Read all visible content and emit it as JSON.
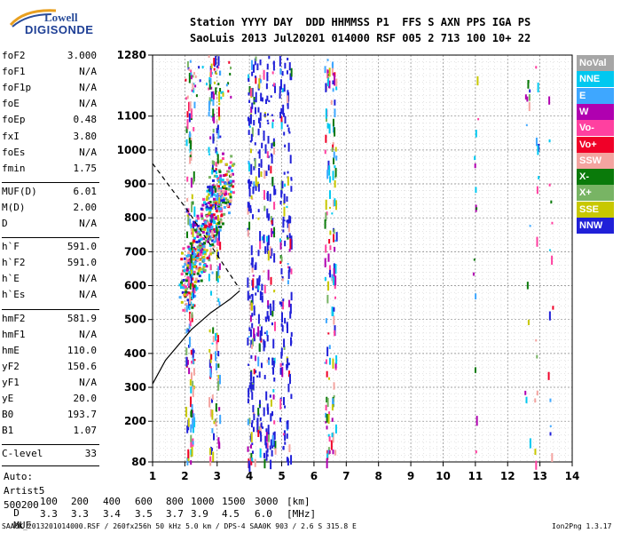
{
  "logo": {
    "line1": "Lowell",
    "line2": "DIGISONDE"
  },
  "header": {
    "labels": [
      "Station",
      "YYYY",
      "DAY",
      "DDD",
      "HHMMSS",
      "P1",
      "FFS",
      "S",
      "AXN",
      "PPS",
      "IGA",
      "PS"
    ],
    "values": [
      "SaoLuis",
      "2013",
      "Jul20",
      "201",
      "014000",
      "RSF",
      "005",
      "2",
      "713",
      "100",
      "10+",
      "22"
    ]
  },
  "params_a": [
    {
      "k": "foF2",
      "v": "3.000"
    },
    {
      "k": "foF1",
      "v": "N/A"
    },
    {
      "k": "foF1p",
      "v": "N/A"
    },
    {
      "k": "foE",
      "v": "N/A"
    },
    {
      "k": "foEp",
      "v": "0.48"
    },
    {
      "k": "fxI",
      "v": "3.80"
    },
    {
      "k": "foEs",
      "v": "N/A"
    },
    {
      "k": "fmin",
      "v": "1.75"
    }
  ],
  "params_b": [
    {
      "k": "MUF(D)",
      "v": "6.01"
    },
    {
      "k": "M(D)",
      "v": "2.00"
    },
    {
      "k": "D",
      "v": "N/A"
    }
  ],
  "params_c": [
    {
      "k": "h`F",
      "v": "591.0"
    },
    {
      "k": "h`F2",
      "v": "591.0"
    },
    {
      "k": "h`E",
      "v": "N/A"
    },
    {
      "k": "h`Es",
      "v": "N/A"
    }
  ],
  "params_d": [
    {
      "k": "hmF2",
      "v": "581.9"
    },
    {
      "k": "hmF1",
      "v": "N/A"
    },
    {
      "k": "hmE",
      "v": "110.0"
    },
    {
      "k": "yF2",
      "v": "150.6"
    },
    {
      "k": "yF1",
      "v": "N/A"
    },
    {
      "k": "yE",
      "v": "20.0"
    },
    {
      "k": "B0",
      "v": "193.7"
    },
    {
      "k": "B1",
      "v": "1.07"
    }
  ],
  "clevel": {
    "k": "C-level",
    "v": "33"
  },
  "footer_status": [
    "Auto:",
    "Artist5",
    "500200"
  ],
  "legend": [
    {
      "label": "NoVal",
      "color": "#a6a6a6"
    },
    {
      "label": "NNE",
      "color": "#00c8f0"
    },
    {
      "label": "E",
      "color": "#3ea7ff"
    },
    {
      "label": "W",
      "color": "#b000b0"
    },
    {
      "label": "Vo-",
      "color": "#ff40a0"
    },
    {
      "label": "Vo+",
      "color": "#f00028"
    },
    {
      "label": "SSW",
      "color": "#f4a4a0"
    },
    {
      "label": "X-",
      "color": "#0a7a0a"
    },
    {
      "label": "X+",
      "color": "#78b464"
    },
    {
      "label": "SSE",
      "color": "#c8c800"
    },
    {
      "label": "NNW",
      "color": "#2020d8"
    }
  ],
  "muf_table": {
    "row1_label": "D",
    "row1": [
      "100",
      "200",
      "400",
      "600",
      "800",
      "1000",
      "1500",
      "3000"
    ],
    "row1_unit": "[km]",
    "row2_label": "MUF",
    "row2": [
      "3.3",
      "3.3",
      "3.4",
      "3.5",
      "3.7",
      "3.9",
      "4.5",
      "6.0"
    ],
    "row2_unit": "[MHz]"
  },
  "footer_left": "SAA0K_2013201014000.RSF / 260fx256h 50 kHz 5.0 km / DPS-4 SAA0K 903 / 2.6 S 315.8 E",
  "footer_right": "Ion2Png 1.3.17",
  "chart_data": {
    "type": "scatter",
    "xlim": [
      1,
      14
    ],
    "ylim": [
      80,
      1280
    ],
    "x_ticks": [
      1,
      2,
      3,
      4,
      5,
      6,
      7,
      8,
      9,
      10,
      11,
      12,
      13,
      14
    ],
    "y_ticks": [
      80,
      200,
      300,
      400,
      500,
      600,
      700,
      800,
      900,
      1000,
      1100,
      1280
    ],
    "grid": "on",
    "legend_placement": "right",
    "traces": {
      "ordinary_o_trace": "cluster 2.0–3.3 MHz, 560–950 km",
      "vertical_streaks_MHz": [
        2.1,
        2.2,
        2.8,
        3.0,
        4.0,
        4.1,
        4.3,
        4.5,
        4.7,
        5.0,
        5.2,
        6.4,
        6.6,
        11.0,
        12.6,
        12.9,
        13.3
      ]
    },
    "profile_dashed": [
      [
        1,
        960
      ],
      [
        2.1,
        820
      ],
      [
        3.7,
        590
      ]
    ],
    "profile_solid": [
      [
        1,
        310
      ],
      [
        1.4,
        380
      ],
      [
        2.2,
        470
      ],
      [
        2.8,
        520
      ],
      [
        3.4,
        560
      ],
      [
        3.7,
        585
      ]
    ]
  }
}
